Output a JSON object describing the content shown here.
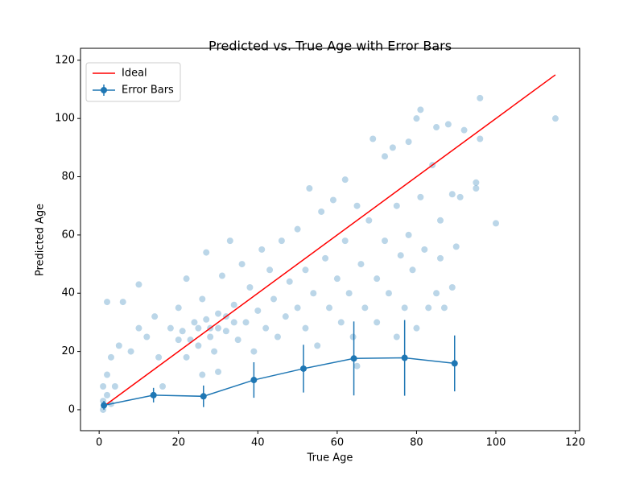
{
  "chart_data": {
    "type": "scatter",
    "title": "Predicted vs. True Age with Error Bars",
    "x_label": "True Age",
    "y_label": "Predicted Age",
    "xlim": [
      -4.7,
      121.1
    ],
    "ylim": [
      -7.2,
      124.1
    ],
    "xticks": [
      0,
      20,
      40,
      60,
      80,
      100,
      120
    ],
    "yticks": [
      0,
      20,
      40,
      60,
      80,
      100,
      120
    ],
    "legend": "upper left",
    "points": {
      "color": "#1f77b4",
      "alpha": 0.3,
      "x": [
        1,
        1,
        1,
        2,
        2,
        3,
        3,
        4,
        5,
        2,
        6,
        8,
        10,
        10,
        12,
        14,
        15,
        16,
        18,
        20,
        20,
        22,
        22,
        24,
        25,
        26,
        26,
        27,
        28,
        29,
        30,
        30,
        31,
        32,
        33,
        34,
        35,
        36,
        37,
        38,
        39,
        40,
        41,
        42,
        43,
        44,
        45,
        46,
        47,
        48,
        50,
        50,
        52,
        52,
        53,
        54,
        55,
        56,
        57,
        58,
        59,
        60,
        61,
        62,
        62,
        63,
        64,
        65,
        65,
        66,
        67,
        68,
        69,
        70,
        70,
        72,
        72,
        73,
        74,
        75,
        75,
        76,
        77,
        78,
        78,
        79,
        80,
        80,
        81,
        81,
        82,
        83,
        84,
        85,
        85,
        86,
        86,
        87,
        88,
        89,
        89,
        90,
        91,
        92,
        95,
        95,
        96,
        96,
        100,
        115,
        21,
        23,
        25,
        27,
        28,
        30,
        32,
        34
      ],
      "values": [
        0,
        3,
        8,
        5,
        12,
        2,
        18,
        8,
        22,
        37,
        37,
        20,
        43,
        28,
        25,
        32,
        18,
        8,
        28,
        24,
        35,
        45,
        18,
        30,
        22,
        38,
        12,
        54,
        28,
        20,
        33,
        13,
        46,
        27,
        58,
        36,
        24,
        50,
        30,
        42,
        20,
        34,
        55,
        28,
        48,
        38,
        25,
        58,
        32,
        44,
        35,
        62,
        28,
        48,
        76,
        40,
        22,
        68,
        52,
        35,
        72,
        45,
        30,
        79,
        58,
        40,
        25,
        70,
        15,
        50,
        35,
        65,
        93,
        45,
        30,
        58,
        87,
        40,
        90,
        25,
        70,
        53,
        35,
        92,
        60,
        48,
        28,
        100,
        103,
        73,
        55,
        35,
        84,
        40,
        97,
        65,
        52,
        35,
        98,
        42,
        74,
        56,
        73,
        96,
        78,
        76,
        107,
        93,
        64,
        100,
        27,
        24,
        28,
        31,
        25,
        28,
        32,
        30
      ]
    },
    "series": [
      {
        "name": "Ideal",
        "type": "line",
        "color": "#ff0000",
        "x": [
          1,
          115
        ],
        "values": [
          1,
          115
        ]
      },
      {
        "name": "Error Bars",
        "type": "errorbar",
        "color": "#1f77b4",
        "x": [
          1.2,
          13.7,
          26.3,
          39,
          51.5,
          64.2,
          77,
          89.6
        ],
        "values": [
          1.5,
          5,
          4.6,
          10.2,
          14.1,
          17.6,
          17.8,
          15.9
        ],
        "errors": [
          1.5,
          2.5,
          3.7,
          6.1,
          8.2,
          12.7,
          13,
          9.6
        ]
      }
    ]
  }
}
